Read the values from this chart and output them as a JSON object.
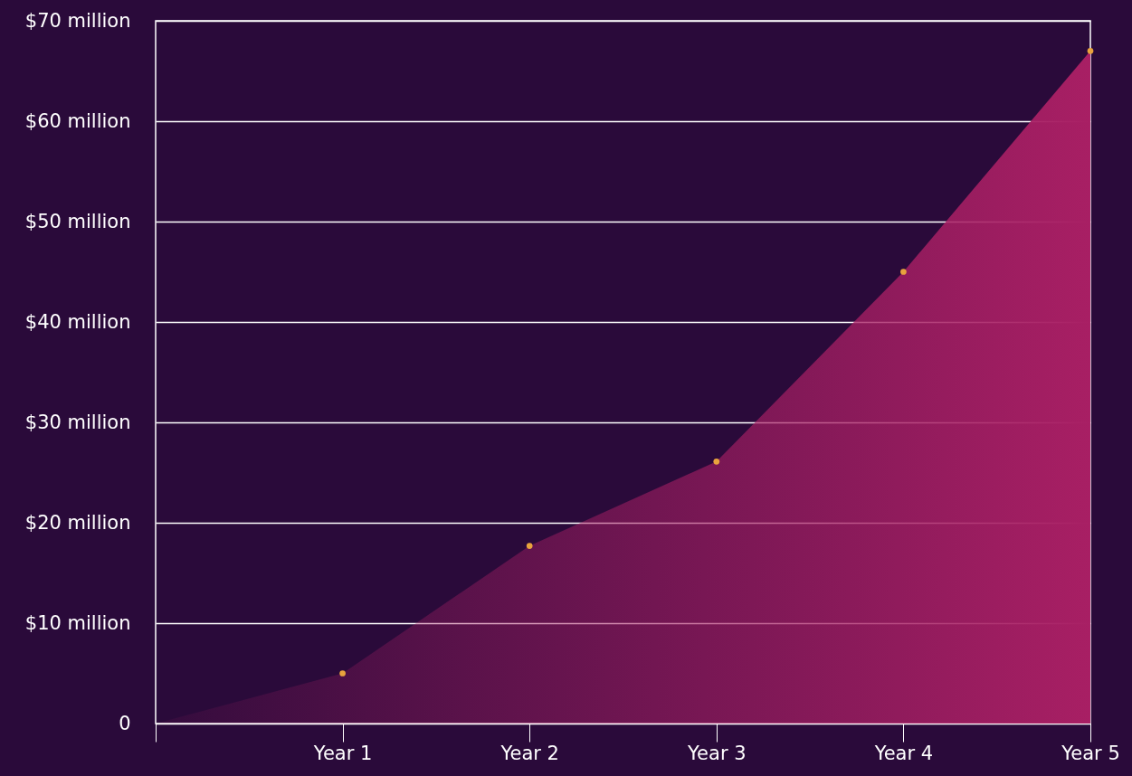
{
  "chart_data": {
    "type": "area",
    "categories": [
      null,
      "Year 1",
      "Year 2",
      "Year 3",
      "Year 4",
      "Year 5"
    ],
    "ylim": [
      0,
      70
    ],
    "yticks": [
      0,
      {
        "value": 10,
        "label": "$10 million"
      },
      {
        "value": 20,
        "label": "$20 million"
      },
      {
        "value": 30,
        "label": "$30 million"
      },
      {
        "value": 40,
        "label": "$40 million"
      },
      {
        "value": 50,
        "label": "$50 million"
      },
      {
        "value": 60,
        "label": "$60 million"
      },
      {
        "value": 70,
        "label": "$70 million"
      }
    ],
    "grid": "y",
    "series": [
      {
        "color": "#a81f64",
        "values": [
          0,
          5,
          17.7,
          26.1,
          45,
          67
        ]
      },
      {
        "type": "scatter",
        "marker": "circle",
        "x": [
          "Year 1",
          "Year 2",
          "Year 3",
          "Year 4",
          "Year 5"
        ],
        "color": "#e8a33d",
        "values": [
          5,
          17.7,
          26.1,
          45,
          67
        ]
      }
    ]
  }
}
